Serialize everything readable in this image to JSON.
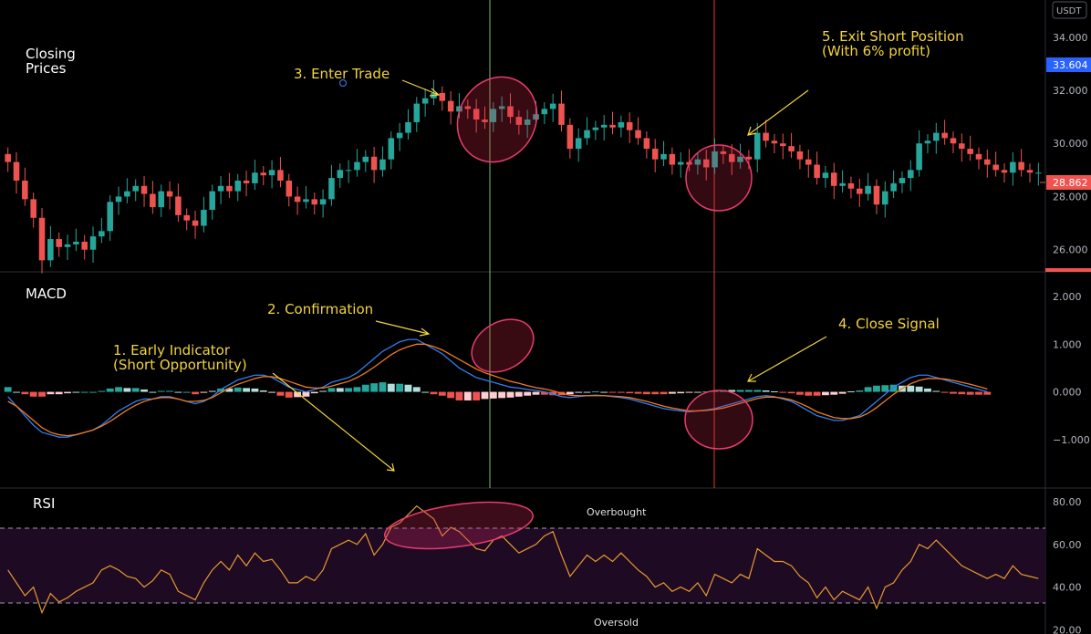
{
  "chart_data": [
    {
      "type": "candlestick",
      "panel": "price",
      "title": "Closing\nPrices",
      "unit": "USDT",
      "ylim": [
        25.2,
        35.4
      ],
      "y_ticks": [
        "26.000",
        "28.000",
        "30.000",
        "32.000",
        "34.000"
      ],
      "last_price": "28.862",
      "high_marker": "33.604",
      "closes": [
        29.3,
        28.6,
        27.9,
        27.2,
        25.6,
        26.4,
        26.1,
        26.2,
        26.3,
        26.0,
        26.5,
        26.7,
        27.8,
        28.0,
        28.2,
        28.4,
        28.1,
        27.6,
        28.2,
        28.0,
        27.3,
        27.1,
        26.9,
        27.5,
        28.2,
        28.4,
        28.2,
        28.6,
        28.5,
        28.9,
        28.8,
        29.0,
        28.6,
        28.0,
        27.8,
        27.9,
        27.7,
        27.9,
        28.7,
        29.0,
        29.0,
        29.3,
        29.5,
        29.0,
        29.4,
        30.2,
        30.4,
        30.8,
        31.5,
        31.7,
        31.9,
        31.6,
        31.2,
        31.4,
        31.3,
        30.9,
        30.8,
        31.3,
        31.4,
        31.0,
        30.7,
        30.9,
        31.1,
        31.3,
        31.5,
        30.7,
        29.8,
        30.2,
        30.5,
        30.6,
        30.7,
        30.6,
        30.8,
        30.5,
        30.2,
        29.8,
        29.4,
        29.6,
        29.2,
        29.3,
        29.2,
        29.4,
        29.1,
        29.7,
        29.6,
        29.3,
        29.5,
        29.4,
        30.4,
        30.1,
        30.0,
        29.9,
        29.7,
        29.4,
        29.2,
        28.7,
        28.9,
        28.4,
        28.5,
        28.3,
        28.1,
        28.4,
        27.7,
        28.2,
        28.5,
        28.7,
        29.0,
        30.0,
        30.1,
        30.4,
        30.2,
        30.0,
        29.8,
        29.6,
        29.4,
        29.2,
        29.0,
        28.9,
        29.3,
        29.0,
        28.9,
        28.9
      ],
      "annotations": [
        {
          "text": "3. Enter Trade"
        },
        {
          "text": "5. Exit Short Position\n(With 6% profit)"
        }
      ]
    },
    {
      "type": "line+histogram",
      "panel": "macd",
      "title": "MACD",
      "ylim": [
        -2.0,
        2.5
      ],
      "y_ticks": [
        "2.000",
        "1.000",
        "0.000",
        "−1.000"
      ],
      "macd": [
        -0.1,
        -0.3,
        -0.5,
        -0.7,
        -0.85,
        -0.9,
        -0.95,
        -0.95,
        -0.9,
        -0.85,
        -0.8,
        -0.7,
        -0.55,
        -0.4,
        -0.3,
        -0.2,
        -0.15,
        -0.15,
        -0.1,
        -0.1,
        -0.15,
        -0.2,
        -0.25,
        -0.2,
        -0.1,
        0.05,
        0.15,
        0.25,
        0.3,
        0.35,
        0.35,
        0.3,
        0.2,
        0.1,
        0.05,
        0.0,
        0.05,
        0.1,
        0.2,
        0.25,
        0.3,
        0.4,
        0.55,
        0.7,
        0.85,
        0.95,
        1.05,
        1.1,
        1.1,
        1.0,
        0.9,
        0.8,
        0.65,
        0.5,
        0.4,
        0.3,
        0.25,
        0.2,
        0.15,
        0.1,
        0.08,
        0.05,
        0.03,
        0.0,
        -0.05,
        -0.1,
        -0.12,
        -0.1,
        -0.08,
        -0.07,
        -0.08,
        -0.1,
        -0.12,
        -0.15,
        -0.2,
        -0.25,
        -0.3,
        -0.35,
        -0.38,
        -0.4,
        -0.42,
        -0.4,
        -0.38,
        -0.35,
        -0.3,
        -0.25,
        -0.2,
        -0.15,
        -0.1,
        -0.08,
        -0.1,
        -0.15,
        -0.2,
        -0.3,
        -0.4,
        -0.5,
        -0.55,
        -0.6,
        -0.6,
        -0.55,
        -0.5,
        -0.35,
        -0.2,
        -0.05,
        0.1,
        0.2,
        0.3,
        0.35,
        0.35,
        0.3,
        0.25,
        0.2,
        0.15,
        0.1,
        0.05,
        0.0
      ],
      "signal": [
        -0.2,
        -0.3,
        -0.45,
        -0.6,
        -0.75,
        -0.85,
        -0.9,
        -0.92,
        -0.9,
        -0.85,
        -0.8,
        -0.72,
        -0.62,
        -0.5,
        -0.38,
        -0.28,
        -0.2,
        -0.15,
        -0.12,
        -0.12,
        -0.15,
        -0.2,
        -0.2,
        -0.18,
        -0.12,
        -0.02,
        0.08,
        0.16,
        0.22,
        0.28,
        0.32,
        0.32,
        0.28,
        0.22,
        0.16,
        0.1,
        0.08,
        0.08,
        0.12,
        0.17,
        0.22,
        0.3,
        0.4,
        0.52,
        0.65,
        0.78,
        0.88,
        0.95,
        1.0,
        1.0,
        0.95,
        0.88,
        0.78,
        0.68,
        0.58,
        0.48,
        0.4,
        0.34,
        0.28,
        0.22,
        0.18,
        0.13,
        0.09,
        0.06,
        0.02,
        -0.03,
        -0.07,
        -0.08,
        -0.08,
        -0.08,
        -0.08,
        -0.09,
        -0.1,
        -0.12,
        -0.16,
        -0.2,
        -0.25,
        -0.3,
        -0.34,
        -0.37,
        -0.4,
        -0.4,
        -0.39,
        -0.37,
        -0.34,
        -0.29,
        -0.24,
        -0.19,
        -0.14,
        -0.11,
        -0.11,
        -0.13,
        -0.17,
        -0.24,
        -0.32,
        -0.42,
        -0.48,
        -0.54,
        -0.56,
        -0.56,
        -0.53,
        -0.45,
        -0.33,
        -0.19,
        -0.05,
        0.07,
        0.17,
        0.24,
        0.28,
        0.28,
        0.27,
        0.24,
        0.2,
        0.16,
        0.11,
        0.06
      ],
      "annotations": [
        {
          "text": "2. Confirmation"
        },
        {
          "text": "1. Early Indicator\n(Short Opportunity)"
        },
        {
          "text": "4. Close Signal"
        }
      ]
    },
    {
      "type": "line",
      "panel": "rsi",
      "title": "RSI",
      "ylim": [
        18,
        86
      ],
      "y_ticks": [
        "80.00",
        "60.00",
        "40.00",
        "20.00"
      ],
      "overbought": 70,
      "oversold": 30,
      "overbought_label": "Overbought",
      "oversold_label": "Oversold",
      "values": [
        48,
        42,
        36,
        40,
        28,
        37,
        33,
        35,
        38,
        40,
        42,
        48,
        50,
        48,
        45,
        44,
        40,
        43,
        48,
        46,
        38,
        36,
        34,
        42,
        48,
        52,
        48,
        55,
        50,
        56,
        52,
        53,
        48,
        42,
        42,
        45,
        43,
        48,
        58,
        60,
        62,
        60,
        65,
        55,
        60,
        68,
        70,
        74,
        78,
        75,
        72,
        64,
        68,
        66,
        62,
        58,
        57,
        62,
        64,
        60,
        56,
        58,
        60,
        64,
        66,
        55,
        45,
        50,
        55,
        52,
        55,
        52,
        56,
        52,
        48,
        45,
        40,
        42,
        38,
        40,
        38,
        42,
        36,
        46,
        44,
        42,
        46,
        44,
        58,
        55,
        52,
        52,
        50,
        45,
        42,
        35,
        40,
        34,
        38,
        36,
        34,
        40,
        30,
        40,
        42,
        48,
        52,
        60,
        58,
        62,
        58,
        54,
        50,
        48,
        46,
        44,
        46,
        44,
        50,
        46,
        45,
        44
      ]
    }
  ]
}
